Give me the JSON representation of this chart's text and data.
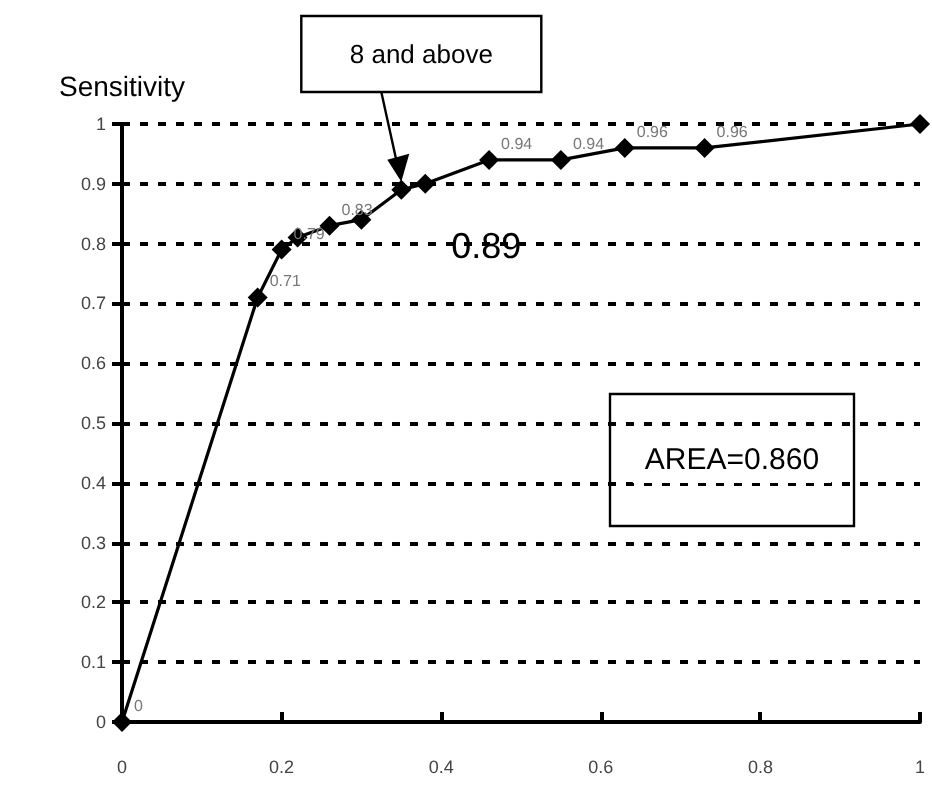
{
  "chart_data": {
    "type": "line",
    "ylabel": "Sensitivity",
    "x": [
      0,
      0.17,
      0.2,
      0.22,
      0.26,
      0.3,
      0.35,
      0.38,
      0.46,
      0.55,
      0.63,
      0.73,
      1
    ],
    "series": [
      {
        "color": "#000000",
        "values": [
          0,
          0.71,
          0.79,
          0.81,
          0.83,
          0.84,
          0.89,
          0.9,
          0.94,
          0.94,
          0.96,
          0.96,
          1
        ],
        "value_labels": [
          "0",
          "0.71",
          "0.79",
          null,
          "0.83",
          null,
          null,
          null,
          "0.94",
          "0.94",
          "0.96",
          "0.96",
          null
        ]
      }
    ],
    "xlim": [
      0,
      1
    ],
    "xticks": [
      0,
      0.2,
      0.4,
      0.6,
      0.8,
      1
    ],
    "ylim": [
      0,
      1
    ],
    "yticks": [
      0,
      0.1,
      0.2,
      0.3,
      0.4,
      0.5,
      0.6,
      0.7,
      0.8,
      0.9,
      1
    ],
    "grid": "y",
    "marker": "diamond",
    "line_style": "solid",
    "annotations": [
      {
        "text": "8 and above",
        "x": 0.35,
        "y": 0.89
      },
      {
        "text": "0.89",
        "x": 0.35,
        "y": 0.89
      },
      "AREA=0.860"
    ]
  }
}
